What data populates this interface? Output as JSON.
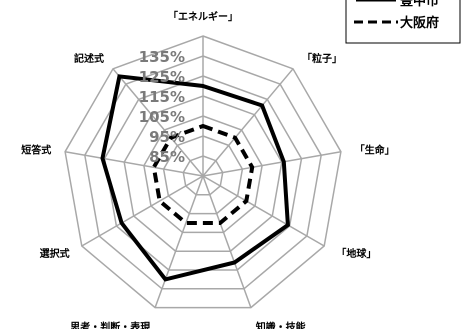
{
  "chart_data": {
    "type": "radar",
    "axes": [
      "「エネルギー」",
      "「粒子」",
      "「生命」",
      "「地球」",
      "知識・技能",
      "思考・判断・表現",
      "選択式",
      "短答式",
      "記述式"
    ],
    "rings": [
      85,
      95,
      105,
      115,
      125,
      135
    ],
    "ring_labels": [
      "85%",
      "95%",
      "105%",
      "115%",
      "125%",
      "135%"
    ],
    "rlim": [
      75,
      145
    ],
    "grid": true,
    "legend_position": "top-right",
    "series": [
      {
        "name": "豊中市",
        "values": [
          120,
          121,
          116,
          124,
          121,
          130,
          122,
          126,
          140
        ],
        "color": "#000000",
        "style": "solid"
      },
      {
        "name": "大阪府",
        "values": [
          100,
          100,
          100,
          100,
          100,
          100,
          100,
          100,
          100
        ],
        "color": "#000000",
        "style": "dashed"
      }
    ]
  }
}
